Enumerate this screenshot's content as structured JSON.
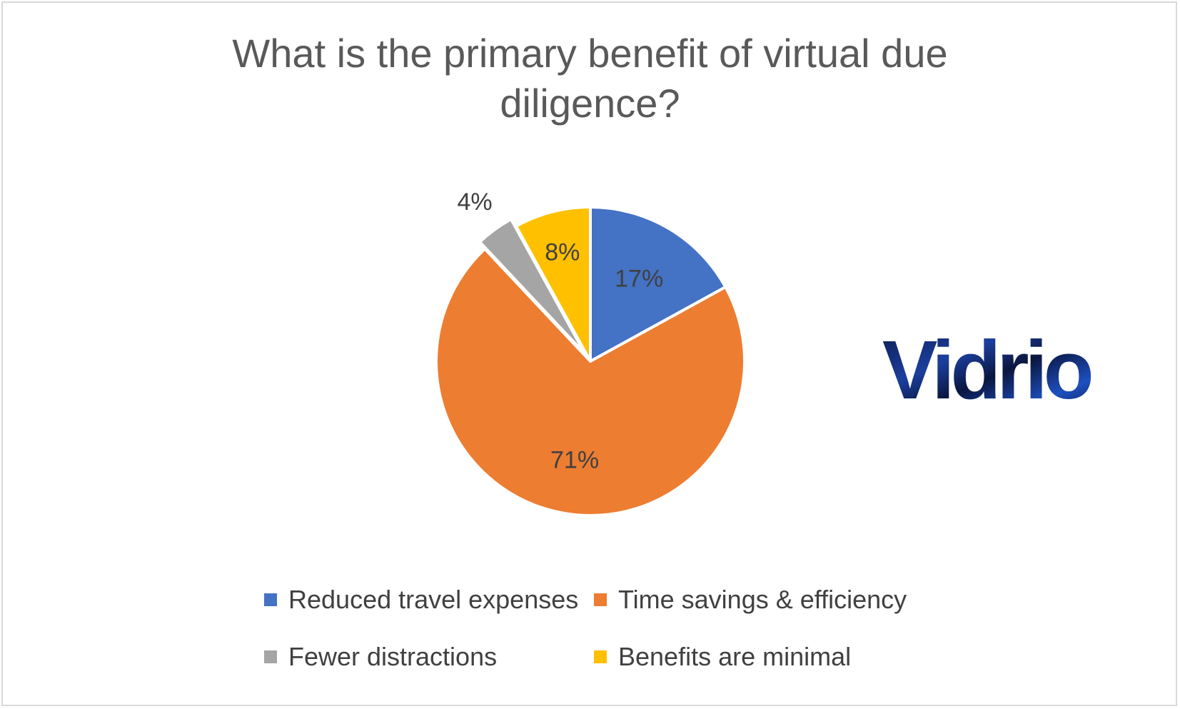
{
  "chart_data": {
    "type": "pie",
    "title": "What is the primary benefit of virtual due diligence?",
    "title_lines": [
      "What is the primary benefit of virtual due",
      "diligence?"
    ],
    "categories": [
      "Reduced travel expenses",
      "Time savings & efficiency",
      "Fewer distractions",
      "Benefits are minimal"
    ],
    "values": [
      17,
      71,
      4,
      8
    ],
    "data_labels": [
      "17%",
      "71%",
      "4%",
      "8%"
    ],
    "colors": [
      "#4472C4",
      "#ED7D31",
      "#A5A5A5",
      "#FFC000"
    ],
    "legend_placement": "bottom",
    "exploded_slice": "Fewer distractions"
  },
  "logo": {
    "text": "Vidrio"
  }
}
